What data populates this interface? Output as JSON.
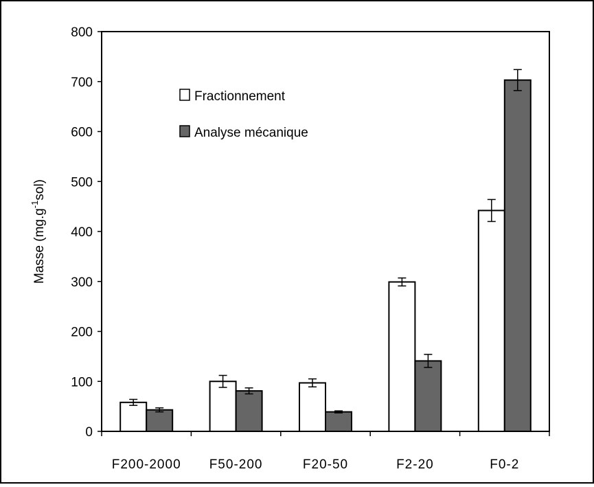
{
  "chart_data": {
    "type": "bar",
    "title": "",
    "xlabel": "",
    "ylabel": {
      "main": "Masse (mg.g",
      "superscript": "-1",
      "tail": "sol)"
    },
    "ylim": [
      0,
      800
    ],
    "yticks": [
      "0",
      "100",
      "200",
      "300",
      "400",
      "500",
      "600",
      "700",
      "800"
    ],
    "categories": [
      "F200-2000",
      "F50-200",
      "F20-50",
      "F2-20",
      "F0-2"
    ],
    "series": [
      {
        "name": "Fractionnement",
        "color": "#ffffff",
        "values": [
          58,
          100,
          97,
          299,
          442
        ],
        "errors": [
          6,
          12,
          8,
          8,
          22
        ]
      },
      {
        "name": "Analyse mécanique",
        "color": "#666666",
        "values": [
          43,
          81,
          39,
          141,
          703
        ],
        "errors": [
          4,
          6,
          2,
          13,
          21
        ]
      }
    ],
    "legend": "top-left",
    "grid": false
  }
}
